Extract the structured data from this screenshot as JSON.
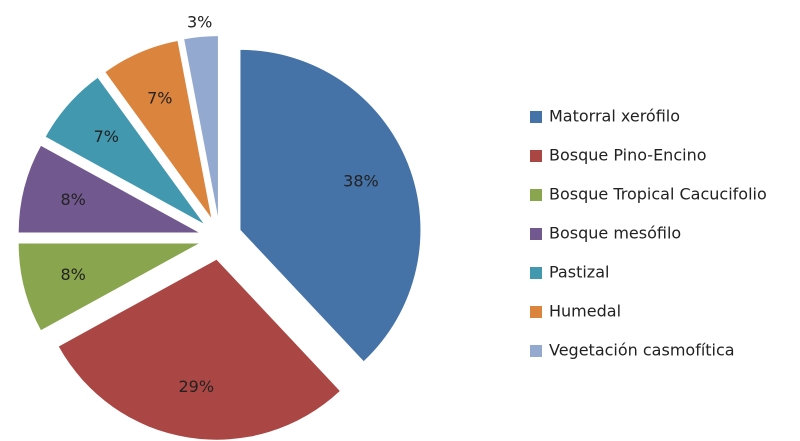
{
  "chart_data": {
    "type": "pie",
    "categories": [
      "Matorral xerófilo",
      "Bosque Pino-Encino",
      "Bosque Tropical Cacucifolio",
      "Bosque mesófilo",
      "Pastizal",
      "Humedal",
      "Vegetación casmofítica"
    ],
    "values": [
      38,
      29,
      8,
      8,
      7,
      7,
      3
    ],
    "value_labels": [
      "38%",
      "29%",
      "8%",
      "8%",
      "7%",
      "7%",
      "3%"
    ],
    "colors": [
      "#4572a7",
      "#aa4643",
      "#89a54e",
      "#71588f",
      "#4198af",
      "#db843d",
      "#93a9cf"
    ],
    "legend": "right"
  }
}
